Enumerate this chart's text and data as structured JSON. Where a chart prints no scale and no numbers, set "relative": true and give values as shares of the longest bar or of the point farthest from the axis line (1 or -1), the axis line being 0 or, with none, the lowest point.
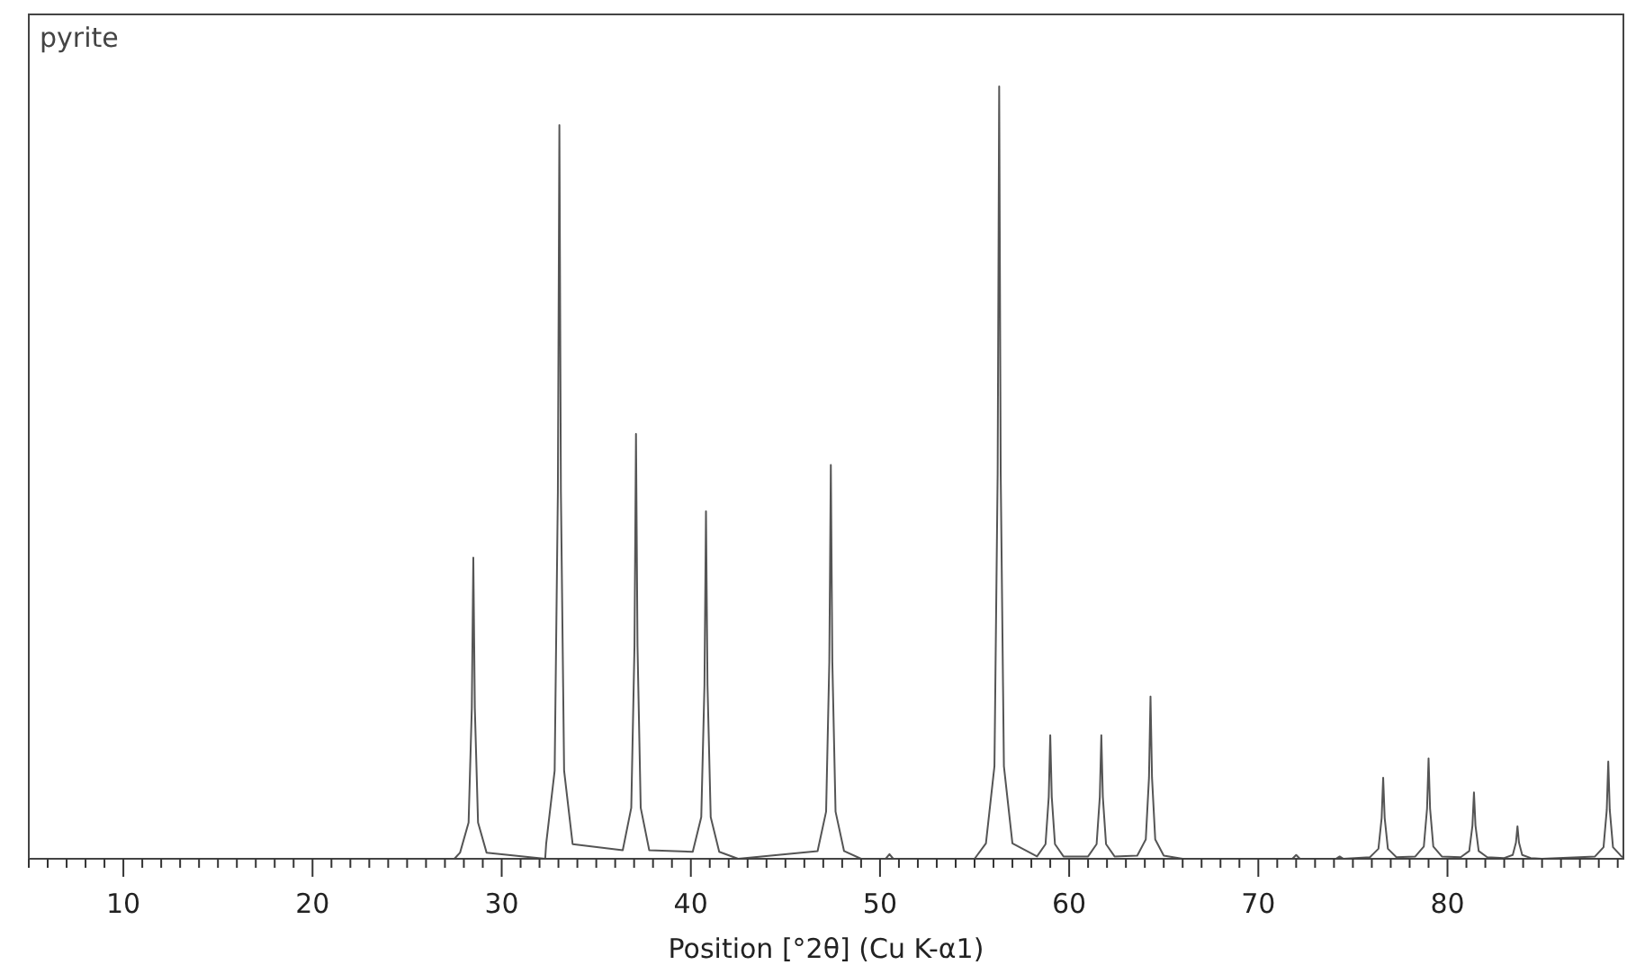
{
  "chart_data": {
    "type": "line",
    "title": "pyrite",
    "xlabel": "Position [°2θ] (Cu K-α1)",
    "relative": true,
    "grid": false,
    "marker": "none",
    "line_style": "solid",
    "xlim": [
      5,
      89.3
    ],
    "xticks": [
      {
        "value": 5,
        "label": null
      },
      {
        "value": 6,
        "label": null
      },
      {
        "value": 7,
        "label": null
      },
      {
        "value": 8,
        "label": null
      },
      {
        "value": 9,
        "label": null
      },
      10,
      {
        "value": 11,
        "label": null
      },
      {
        "value": 12,
        "label": null
      },
      {
        "value": 13,
        "label": null
      },
      {
        "value": 14,
        "label": null
      },
      {
        "value": 15,
        "label": null
      },
      {
        "value": 16,
        "label": null
      },
      {
        "value": 17,
        "label": null
      },
      {
        "value": 18,
        "label": null
      },
      {
        "value": 19,
        "label": null
      },
      20,
      {
        "value": 21,
        "label": null
      },
      {
        "value": 22,
        "label": null
      },
      {
        "value": 23,
        "label": null
      },
      {
        "value": 24,
        "label": null
      },
      {
        "value": 25,
        "label": null
      },
      {
        "value": 26,
        "label": null
      },
      {
        "value": 27,
        "label": null
      },
      {
        "value": 28,
        "label": null
      },
      {
        "value": 29,
        "label": null
      },
      30,
      {
        "value": 31,
        "label": null
      },
      {
        "value": 32,
        "label": null
      },
      {
        "value": 33,
        "label": null
      },
      {
        "value": 34,
        "label": null
      },
      {
        "value": 35,
        "label": null
      },
      {
        "value": 36,
        "label": null
      },
      {
        "value": 37,
        "label": null
      },
      {
        "value": 38,
        "label": null
      },
      {
        "value": 39,
        "label": null
      },
      40,
      {
        "value": 41,
        "label": null
      },
      {
        "value": 42,
        "label": null
      },
      {
        "value": 43,
        "label": null
      },
      {
        "value": 44,
        "label": null
      },
      {
        "value": 45,
        "label": null
      },
      {
        "value": 46,
        "label": null
      },
      {
        "value": 47,
        "label": null
      },
      {
        "value": 48,
        "label": null
      },
      {
        "value": 49,
        "label": null
      },
      50,
      {
        "value": 51,
        "label": null
      },
      {
        "value": 52,
        "label": null
      },
      {
        "value": 53,
        "label": null
      },
      {
        "value": 54,
        "label": null
      },
      {
        "value": 55,
        "label": null
      },
      {
        "value": 56,
        "label": null
      },
      {
        "value": 57,
        "label": null
      },
      {
        "value": 58,
        "label": null
      },
      {
        "value": 59,
        "label": null
      },
      60,
      {
        "value": 61,
        "label": null
      },
      {
        "value": 62,
        "label": null
      },
      {
        "value": 63,
        "label": null
      },
      {
        "value": 64,
        "label": null
      },
      {
        "value": 65,
        "label": null
      },
      {
        "value": 66,
        "label": null
      },
      {
        "value": 67,
        "label": null
      },
      {
        "value": 68,
        "label": null
      },
      {
        "value": 69,
        "label": null
      },
      70,
      {
        "value": 71,
        "label": null
      },
      {
        "value": 72,
        "label": null
      },
      {
        "value": 73,
        "label": null
      },
      {
        "value": 74,
        "label": null
      },
      {
        "value": 75,
        "label": null
      },
      {
        "value": 76,
        "label": null
      },
      {
        "value": 77,
        "label": null
      },
      {
        "value": 78,
        "label": null
      },
      {
        "value": 79,
        "label": null
      },
      80,
      {
        "value": 81,
        "label": null
      },
      {
        "value": 82,
        "label": null
      },
      {
        "value": 83,
        "label": null
      },
      {
        "value": 84,
        "label": null
      },
      {
        "value": 85,
        "label": null
      },
      {
        "value": 86,
        "label": null
      },
      {
        "value": 87,
        "label": null
      },
      {
        "value": 88,
        "label": null
      },
      {
        "value": 89,
        "label": null
      }
    ],
    "series": [
      {
        "color": "#555555",
        "x": [
          5,
          27.5,
          27.8,
          28.25,
          28.42,
          28.5,
          28.58,
          28.75,
          29.2,
          32.3,
          32.35,
          32.8,
          32.97,
          33.05,
          33.13,
          33.3,
          33.75,
          36.4,
          36.85,
          37.02,
          37.1,
          37.18,
          37.35,
          37.8,
          40.1,
          40.55,
          40.72,
          40.8,
          40.88,
          41.05,
          41.5,
          42.5,
          46.7,
          47.15,
          47.32,
          47.4,
          47.48,
          47.65,
          48.1,
          49,
          50.3,
          50.5,
          50.7,
          55,
          55.6,
          56.05,
          56.22,
          56.3,
          56.38,
          56.55,
          57.0,
          58.3,
          58.75,
          58.92,
          59.0,
          59.08,
          59.25,
          59.7,
          61.0,
          61.45,
          61.62,
          61.7,
          61.78,
          61.95,
          62.4,
          63.6,
          64.05,
          64.22,
          64.3,
          64.38,
          64.55,
          65.0,
          66,
          71.8,
          72.0,
          72.2,
          74.1,
          74.3,
          74.5,
          75.9,
          76.35,
          76.52,
          76.6,
          76.68,
          76.85,
          77.3,
          78.3,
          78.75,
          78.92,
          79.0,
          79.08,
          79.25,
          79.7,
          80.7,
          81.15,
          81.32,
          81.4,
          81.48,
          81.65,
          82.1,
          83.0,
          83.45,
          83.62,
          83.7,
          83.78,
          83.95,
          84.4,
          85,
          87.8,
          88.25,
          88.42,
          88.5,
          88.58,
          88.75,
          89.2,
          89.3
        ],
        "values": [
          0,
          0,
          0.008,
          0.047,
          0.195,
          0.39,
          0.195,
          0.047,
          0.008,
          0,
          0.019,
          0.114,
          0.475,
          0.95,
          0.475,
          0.114,
          0.019,
          0.011,
          0.066,
          0.275,
          0.55,
          0.275,
          0.066,
          0.011,
          0.009,
          0.054,
          0.225,
          0.45,
          0.225,
          0.054,
          0.009,
          0,
          0.01,
          0.061,
          0.255,
          0.51,
          0.255,
          0.061,
          0.01,
          0,
          0,
          0.006,
          0,
          0,
          0.02,
          0.12,
          0.5,
          1,
          0.5,
          0.12,
          0.02,
          0.003,
          0.019,
          0.08,
          0.16,
          0.08,
          0.019,
          0.003,
          0.003,
          0.019,
          0.08,
          0.16,
          0.08,
          0.019,
          0.003,
          0.004,
          0.025,
          0.105,
          0.21,
          0.105,
          0.025,
          0.004,
          0,
          0,
          0.005,
          0,
          0,
          0.003,
          0,
          0.002,
          0.013,
          0.053,
          0.105,
          0.053,
          0.013,
          0.002,
          0.003,
          0.016,
          0.065,
          0.13,
          0.065,
          0.016,
          0.003,
          0.002,
          0.01,
          0.043,
          0.086,
          0.043,
          0.01,
          0.002,
          0.001,
          0.005,
          0.021,
          0.042,
          0.021,
          0.005,
          0.001,
          0,
          0.003,
          0.015,
          0.063,
          0.126,
          0.063,
          0.015,
          0.003,
          0.002
        ]
      }
    ]
  }
}
